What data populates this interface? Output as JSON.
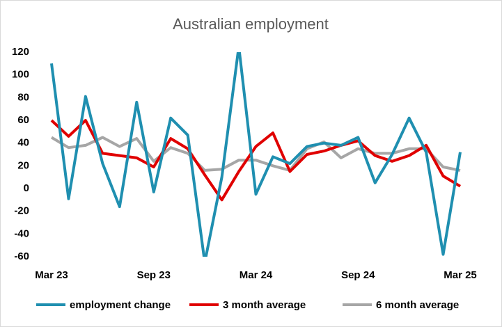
{
  "chart_data": {
    "type": "line",
    "title": "Australian employment",
    "categories": [
      "Mar 23",
      null,
      null,
      null,
      null,
      null,
      "Sep 23",
      null,
      null,
      null,
      null,
      null,
      "Mar 24",
      null,
      null,
      null,
      null,
      null,
      "Sep 24",
      null,
      null,
      null,
      null,
      null,
      "Mar 25"
    ],
    "series": [
      {
        "name": "employment change",
        "color": "#1f8fb0",
        "values": [
          110,
          -9,
          81,
          22,
          -16,
          76,
          -3,
          62,
          47,
          -65,
          10,
          125,
          -5,
          28,
          22,
          37,
          40,
          38,
          45,
          5,
          30,
          62,
          32,
          -58,
          32
        ]
      },
      {
        "name": "3 month average",
        "color": "#e00000",
        "values": [
          60,
          46,
          60,
          31,
          29,
          27,
          19,
          44,
          35,
          12,
          -10,
          15,
          37,
          49,
          15,
          30,
          33,
          38,
          42,
          29,
          24,
          29,
          38,
          11,
          2
        ]
      },
      {
        "name": "6 month average",
        "color": "#a6a6a6",
        "values": [
          45,
          36,
          38,
          45,
          37,
          44,
          24,
          36,
          31,
          16,
          17,
          25,
          25,
          20,
          16,
          35,
          41,
          27,
          35,
          31,
          31,
          35,
          35,
          19,
          16
        ]
      }
    ],
    "ylim": [
      -60,
      120
    ],
    "yticks": [
      -60,
      -40,
      -20,
      0,
      20,
      40,
      60,
      80,
      100,
      120
    ]
  }
}
